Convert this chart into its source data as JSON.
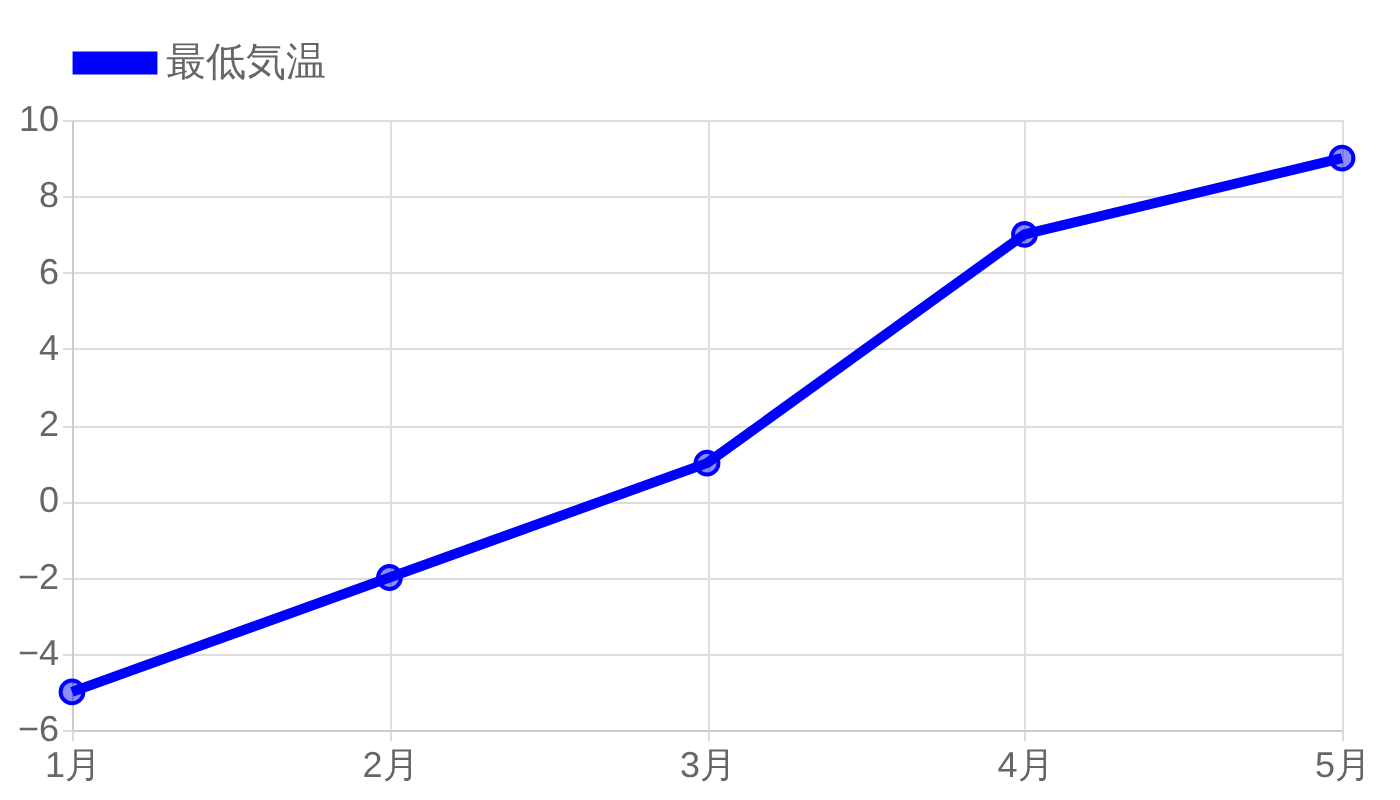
{
  "chart_data": {
    "type": "line",
    "categories": [
      "1月",
      "2月",
      "3月",
      "4月",
      "5月"
    ],
    "series": [
      {
        "name": "最低気温",
        "color": "#0000ff",
        "values": [
          -5,
          -2,
          1,
          7,
          9
        ]
      }
    ],
    "ylim": [
      -6,
      10
    ],
    "yticks": [
      -6,
      -4,
      -2,
      0,
      2,
      4,
      6,
      8,
      10
    ],
    "grid": true,
    "legend": "top",
    "marker": "circle",
    "line_style": "solid"
  }
}
